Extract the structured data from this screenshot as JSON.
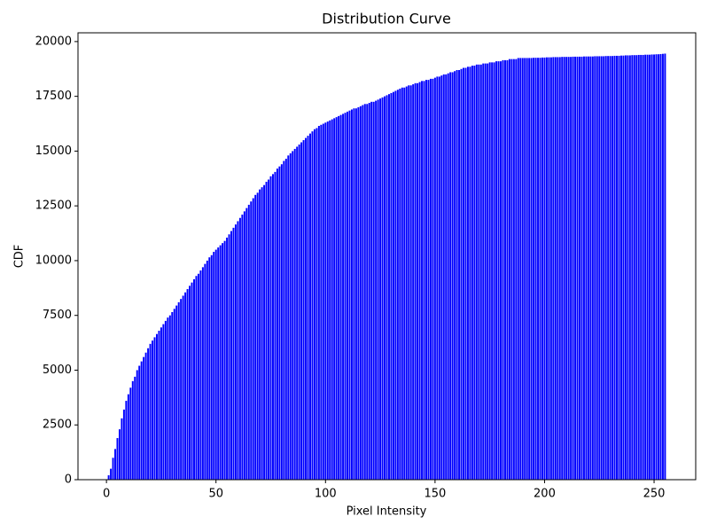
{
  "chart_data": {
    "type": "bar",
    "title": "Distribution Curve",
    "xlabel": "Pixel Intensity",
    "ylabel": "CDF",
    "color": "#0000ff",
    "x": [
      0,
      1,
      2,
      3,
      4,
      5,
      6,
      7,
      8,
      9,
      10,
      11,
      12,
      13,
      14,
      15,
      16,
      17,
      18,
      19,
      20,
      21,
      22,
      23,
      24,
      25,
      26,
      27,
      28,
      29,
      30,
      31,
      32,
      33,
      34,
      35,
      36,
      37,
      38,
      39,
      40,
      41,
      42,
      43,
      44,
      45,
      46,
      47,
      48,
      49,
      50,
      51,
      52,
      53,
      54,
      55,
      56,
      57,
      58,
      59,
      60,
      61,
      62,
      63,
      64,
      65,
      66,
      67,
      68,
      69,
      70,
      71,
      72,
      73,
      74,
      75,
      76,
      77,
      78,
      79,
      80,
      81,
      82,
      83,
      84,
      85,
      86,
      87,
      88,
      89,
      90,
      91,
      92,
      93,
      94,
      95,
      96,
      97,
      98,
      99,
      100,
      101,
      102,
      103,
      104,
      105,
      106,
      107,
      108,
      109,
      110,
      111,
      112,
      113,
      114,
      115,
      116,
      117,
      118,
      119,
      120,
      121,
      122,
      123,
      124,
      125,
      126,
      127,
      128,
      129,
      130,
      131,
      132,
      133,
      134,
      135,
      136,
      137,
      138,
      139,
      140,
      141,
      142,
      143,
      144,
      145,
      146,
      147,
      148,
      149,
      150,
      151,
      152,
      153,
      154,
      155,
      156,
      157,
      158,
      159,
      160,
      161,
      162,
      163,
      164,
      165,
      166,
      167,
      168,
      169,
      170,
      171,
      172,
      173,
      174,
      175,
      176,
      177,
      178,
      179,
      180,
      181,
      182,
      183,
      184,
      185,
      186,
      187,
      188,
      189,
      190,
      191,
      192,
      193,
      194,
      195,
      196,
      197,
      198,
      199,
      200,
      201,
      202,
      203,
      204,
      205,
      206,
      207,
      208,
      209,
      210,
      211,
      212,
      213,
      214,
      215,
      216,
      217,
      218,
      219,
      220,
      221,
      222,
      223,
      224,
      225,
      226,
      227,
      228,
      229,
      230,
      231,
      232,
      233,
      234,
      235,
      236,
      237,
      238,
      239,
      240,
      241,
      242,
      243,
      244,
      245,
      246,
      247,
      248,
      249,
      250,
      251,
      252,
      253,
      254,
      255
    ],
    "values": [
      0,
      200,
      500,
      1000,
      1400,
      1900,
      2300,
      2800,
      3200,
      3600,
      3900,
      4200,
      4500,
      4700,
      5000,
      5200,
      5400,
      5600,
      5800,
      6000,
      6200,
      6350,
      6500,
      6650,
      6800,
      6950,
      7100,
      7250,
      7400,
      7500,
      7650,
      7800,
      7950,
      8100,
      8250,
      8400,
      8550,
      8700,
      8850,
      9000,
      9150,
      9300,
      9400,
      9550,
      9700,
      9850,
      10000,
      10150,
      10250,
      10400,
      10500,
      10600,
      10700,
      10800,
      10900,
      11050,
      11200,
      11350,
      11500,
      11650,
      11800,
      11950,
      12100,
      12250,
      12400,
      12550,
      12700,
      12850,
      13000,
      13100,
      13250,
      13350,
      13450,
      13600,
      13700,
      13850,
      13950,
      14050,
      14200,
      14300,
      14400,
      14550,
      14650,
      14800,
      14900,
      15000,
      15100,
      15200,
      15300,
      15400,
      15500,
      15600,
      15700,
      15800,
      15900,
      16000,
      16050,
      16150,
      16200,
      16250,
      16300,
      16350,
      16400,
      16450,
      16500,
      16550,
      16600,
      16650,
      16700,
      16750,
      16800,
      16850,
      16900,
      16950,
      16950,
      17000,
      17050,
      17100,
      17150,
      17150,
      17200,
      17250,
      17250,
      17300,
      17350,
      17400,
      17450,
      17500,
      17550,
      17600,
      17650,
      17700,
      17750,
      17800,
      17850,
      17900,
      17900,
      17950,
      18000,
      18000,
      18050,
      18100,
      18100,
      18150,
      18200,
      18200,
      18250,
      18250,
      18300,
      18300,
      18350,
      18400,
      18400,
      18450,
      18500,
      18500,
      18550,
      18600,
      18600,
      18650,
      18700,
      18700,
      18750,
      18800,
      18800,
      18850,
      18850,
      18900,
      18900,
      18950,
      18950,
      18950,
      19000,
      19000,
      19000,
      19050,
      19050,
      19050,
      19100,
      19100,
      19100,
      19150,
      19150,
      19150,
      19200,
      19200,
      19200,
      19200,
      19250,
      19250,
      19250,
      19250,
      19250,
      19250,
      19250,
      19260,
      19260,
      19260,
      19260,
      19270,
      19270,
      19280,
      19280,
      19280,
      19290,
      19290,
      19290,
      19290,
      19300,
      19300,
      19300,
      19300,
      19300,
      19310,
      19310,
      19310,
      19310,
      19310,
      19320,
      19320,
      19320,
      19320,
      19320,
      19330,
      19330,
      19330,
      19330,
      19330,
      19340,
      19340,
      19340,
      19340,
      19350,
      19350,
      19350,
      19360,
      19360,
      19370,
      19370,
      19370,
      19380,
      19380,
      19380,
      19390,
      19390,
      19390,
      19400,
      19400,
      19400,
      19410,
      19410,
      19420,
      19420,
      19430,
      19440,
      19450
    ],
    "bar_width": 0.8,
    "xlim": [
      -13,
      269
    ],
    "xticks": [
      0,
      50,
      100,
      150,
      200,
      250
    ],
    "ylim": [
      0,
      20400
    ],
    "yticks": [
      0,
      2500,
      5000,
      7500,
      10000,
      12500,
      15000,
      17500,
      20000
    ]
  }
}
